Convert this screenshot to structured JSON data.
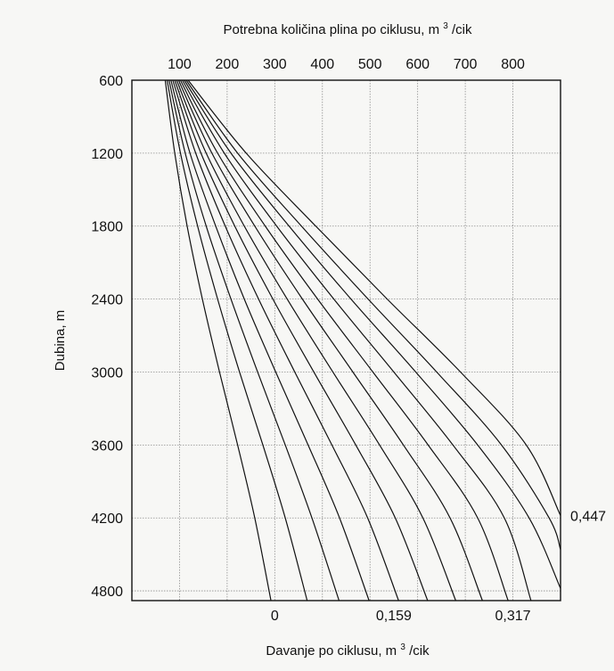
{
  "chart_data": {
    "type": "line",
    "title": "",
    "top_axis": {
      "label_main": "Potrebna količina plina po ciklusu, m",
      "label_sup": "3",
      "label_end": "/cik",
      "ticks": [
        100,
        200,
        300,
        400,
        500,
        600,
        700,
        800
      ],
      "range": [
        0,
        900
      ]
    },
    "bottom_axis": {
      "label_main": "Davanje po ciklusu, m",
      "label_sup": "3",
      "label_end": "/cik",
      "tick_labels": [
        {
          "text": "0",
          "position": 300
        },
        {
          "text": "0,159",
          "position": 550
        },
        {
          "text": "0,317",
          "position": 800
        }
      ]
    },
    "y_axis": {
      "label": "Dubina, m",
      "ticks": [
        600,
        1200,
        1800,
        2400,
        3000,
        3600,
        4200,
        4800
      ],
      "range": [
        600,
        4880
      ],
      "inverted": true
    },
    "grid": true,
    "annotation": {
      "text": "0,447",
      "target_series": "0,447"
    },
    "series": [
      {
        "name": "",
        "points": [
          [
            70,
            600
          ],
          [
            90,
            1200
          ],
          [
            116,
            1800
          ],
          [
            148,
            2400
          ],
          [
            184,
            3000
          ],
          [
            222,
            3600
          ],
          [
            258,
            4200
          ],
          [
            292,
            4880
          ]
        ]
      },
      {
        "name": "",
        "points": [
          [
            74,
            600
          ],
          [
            102,
            1200
          ],
          [
            138,
            1800
          ],
          [
            180,
            2400
          ],
          [
            226,
            3000
          ],
          [
            275,
            3600
          ],
          [
            322,
            4200
          ],
          [
            368,
            4880
          ]
        ]
      },
      {
        "name": "",
        "points": [
          [
            78,
            600
          ],
          [
            112,
            1200
          ],
          [
            156,
            1800
          ],
          [
            208,
            2400
          ],
          [
            264,
            3000
          ],
          [
            322,
            3600
          ],
          [
            378,
            4200
          ],
          [
            435,
            4880
          ]
        ]
      },
      {
        "name": "",
        "points": [
          [
            82,
            600
          ],
          [
            122,
            1200
          ],
          [
            176,
            1800
          ],
          [
            236,
            2400
          ],
          [
            302,
            3000
          ],
          [
            370,
            3600
          ],
          [
            436,
            4200
          ],
          [
            498,
            4880
          ]
        ]
      },
      {
        "name": "",
        "points": [
          [
            86,
            600
          ],
          [
            134,
            1200
          ],
          [
            196,
            1800
          ],
          [
            266,
            2400
          ],
          [
            342,
            3000
          ],
          [
            420,
            3600
          ],
          [
            495,
            4200
          ],
          [
            560,
            4880
          ]
        ]
      },
      {
        "name": "",
        "points": [
          [
            90,
            600
          ],
          [
            145,
            1200
          ],
          [
            216,
            1800
          ],
          [
            296,
            2400
          ],
          [
            382,
            3000
          ],
          [
            470,
            3600
          ],
          [
            553,
            4200
          ],
          [
            621,
            4880
          ]
        ]
      },
      {
        "name": "",
        "points": [
          [
            94,
            600
          ],
          [
            156,
            1200
          ],
          [
            236,
            1800
          ],
          [
            326,
            2400
          ],
          [
            422,
            3000
          ],
          [
            520,
            3600
          ],
          [
            611,
            4200
          ],
          [
            680,
            4880
          ]
        ]
      },
      {
        "name": "",
        "points": [
          [
            98,
            600
          ],
          [
            168,
            1200
          ],
          [
            258,
            1800
          ],
          [
            358,
            2400
          ],
          [
            464,
            3000
          ],
          [
            570,
            3600
          ],
          [
            668,
            4200
          ],
          [
            736,
            4880
          ]
        ]
      },
      {
        "name": "",
        "points": [
          [
            102,
            600
          ],
          [
            180,
            1200
          ],
          [
            280,
            1800
          ],
          [
            390,
            2400
          ],
          [
            506,
            3000
          ],
          [
            622,
            3600
          ],
          [
            726,
            4200
          ],
          [
            790,
            4880
          ]
        ]
      },
      {
        "name": "",
        "points": [
          [
            106,
            600
          ],
          [
            194,
            1200
          ],
          [
            304,
            1800
          ],
          [
            424,
            2400
          ],
          [
            550,
            3000
          ],
          [
            674,
            3600
          ],
          [
            782,
            4200
          ],
          [
            838,
            4880
          ]
        ]
      },
      {
        "name": "",
        "points": [
          [
            110,
            600
          ],
          [
            208,
            1200
          ],
          [
            330,
            1800
          ],
          [
            460,
            2400
          ],
          [
            596,
            3000
          ],
          [
            726,
            3600
          ],
          [
            834,
            4200
          ],
          [
            900,
            4780
          ]
        ]
      },
      {
        "name": "",
        "points": [
          [
            114,
            600
          ],
          [
            222,
            1200
          ],
          [
            356,
            1800
          ],
          [
            496,
            2400
          ],
          [
            640,
            3000
          ],
          [
            776,
            3600
          ],
          [
            876,
            4200
          ],
          [
            900,
            4460
          ]
        ]
      },
      {
        "name": "0,447",
        "points": [
          [
            118,
            600
          ],
          [
            240,
            1200
          ],
          [
            386,
            1800
          ],
          [
            536,
            2400
          ],
          [
            690,
            3000
          ],
          [
            828,
            3600
          ],
          [
            900,
            4180
          ]
        ]
      }
    ]
  }
}
